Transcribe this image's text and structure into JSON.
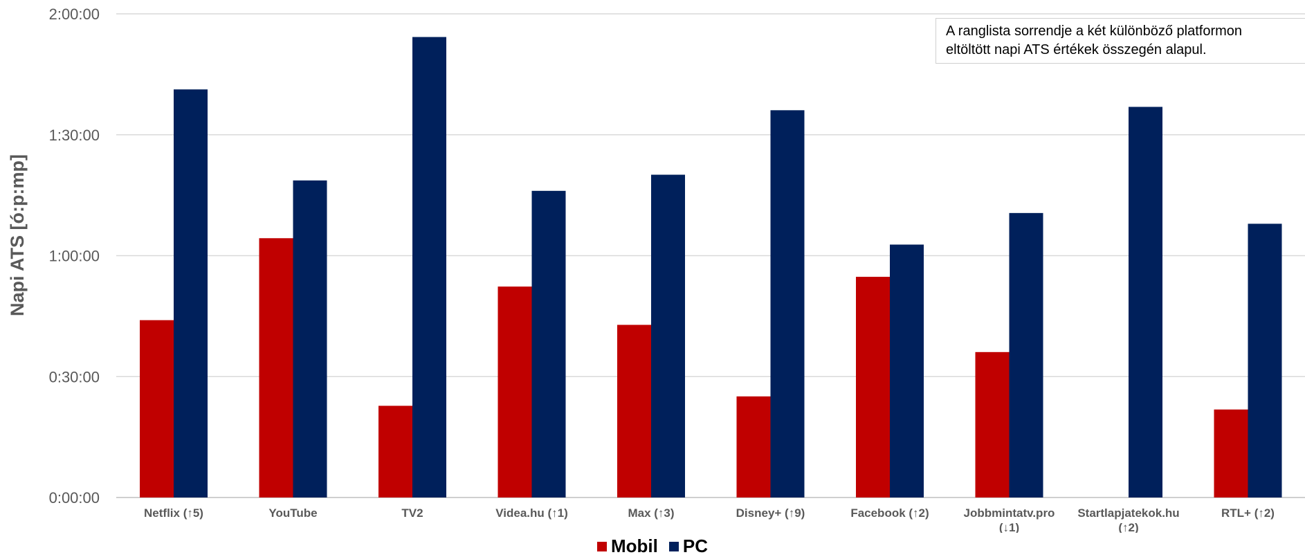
{
  "chart_data": {
    "type": "bar",
    "ylabel": "Napi ATS [ó:p:mp]",
    "yticks": [
      "0:00:00",
      "0:30:00",
      "1:00:00",
      "1:30:00",
      "2:00:00"
    ],
    "ylim_seconds": [
      0,
      7200
    ],
    "grid": true,
    "legend_position": "bottom",
    "categories": [
      [
        "Netflix (↑5)"
      ],
      [
        "YouTube"
      ],
      [
        "TV2"
      ],
      [
        "Videa.hu (↑1)"
      ],
      [
        "Max (↑3)"
      ],
      [
        "Disney+ (↑9)"
      ],
      [
        "Facebook (↑2)"
      ],
      [
        "Jobbmintatv.pro",
        "(↓1)"
      ],
      [
        "Startlapjatekok.hu",
        "(↑2)"
      ],
      [
        "RTL+ (↑2)"
      ]
    ],
    "series": [
      {
        "name": "Mobil",
        "color": "#c00000",
        "values_seconds": [
          2640,
          3860,
          1365,
          3140,
          2570,
          1505,
          3285,
          2165,
          null,
          1310
        ]
      },
      {
        "name": "PC",
        "color": "#00205b",
        "values_seconds": [
          6075,
          4720,
          6855,
          4565,
          4805,
          5765,
          3765,
          4235,
          5815,
          4075
        ]
      }
    ],
    "annotation": [
      "A ranglista sorrendje a két különböző platformon",
      "eltöltött napi ATS értékek összegén alapul."
    ]
  }
}
